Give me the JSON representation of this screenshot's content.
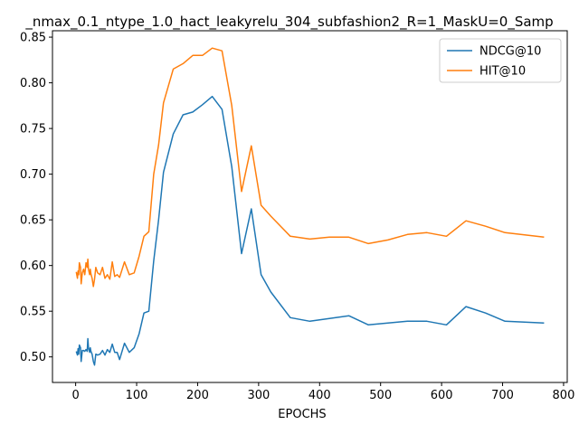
{
  "chart_data": {
    "type": "line",
    "title": "_nmax_0.1_ntype_1.0_hact_leakyrelu_304_subfashion2_R=1_MaskU=0_Samp",
    "xlabel": "EPOCHS",
    "ylabel": "",
    "xlim": [
      -38,
      806
    ],
    "ylim": [
      0.472,
      0.857
    ],
    "xticks": [
      0,
      100,
      200,
      300,
      400,
      500,
      600,
      700,
      800
    ],
    "yticks": [
      0.5,
      0.55,
      0.6,
      0.65,
      0.7,
      0.75,
      0.8,
      0.85
    ],
    "legend_position": "upper-right",
    "series": [
      {
        "name": "NDCG@10",
        "color": "#1f77b4",
        "x": [
          1,
          3,
          4,
          5,
          6,
          8,
          9,
          11,
          13,
          15,
          17,
          19,
          20,
          21,
          23,
          24,
          25,
          27,
          29,
          31,
          33,
          36,
          40,
          44,
          48,
          52,
          56,
          60,
          64,
          68,
          72,
          80,
          88,
          96,
          104,
          112,
          120,
          128,
          136,
          144,
          160,
          176,
          192,
          208,
          224,
          240,
          256,
          272,
          288,
          304,
          320,
          352,
          384,
          416,
          448,
          480,
          512,
          544,
          576,
          608,
          640,
          672,
          704,
          768
        ],
        "y": [
          0.506,
          0.502,
          0.509,
          0.503,
          0.513,
          0.51,
          0.495,
          0.507,
          0.507,
          0.506,
          0.508,
          0.506,
          0.52,
          0.51,
          0.505,
          0.51,
          0.506,
          0.503,
          0.495,
          0.491,
          0.503,
          0.502,
          0.503,
          0.507,
          0.502,
          0.508,
          0.505,
          0.514,
          0.505,
          0.505,
          0.497,
          0.515,
          0.505,
          0.51,
          0.525,
          0.548,
          0.55,
          0.605,
          0.65,
          0.702,
          0.744,
          0.765,
          0.768,
          0.776,
          0.785,
          0.771,
          0.708,
          0.613,
          0.662,
          0.59,
          0.571,
          0.543,
          0.539,
          0.542,
          0.545,
          0.535,
          0.537,
          0.539,
          0.539,
          0.535,
          0.555,
          0.548,
          0.539,
          0.537
        ]
      },
      {
        "name": "HIT@10",
        "color": "#ff7f0e",
        "x": [
          1,
          3,
          4,
          5,
          6,
          8,
          9,
          11,
          13,
          15,
          17,
          19,
          20,
          21,
          23,
          24,
          25,
          27,
          29,
          31,
          33,
          36,
          40,
          44,
          48,
          52,
          56,
          60,
          64,
          68,
          72,
          80,
          88,
          96,
          104,
          112,
          120,
          128,
          136,
          144,
          160,
          176,
          192,
          208,
          224,
          240,
          256,
          272,
          288,
          304,
          320,
          352,
          384,
          416,
          448,
          480,
          512,
          544,
          576,
          608,
          640,
          672,
          704,
          768
        ],
        "y": [
          0.593,
          0.586,
          0.594,
          0.59,
          0.603,
          0.598,
          0.58,
          0.592,
          0.596,
          0.59,
          0.603,
          0.598,
          0.607,
          0.596,
          0.59,
          0.596,
          0.591,
          0.586,
          0.577,
          0.585,
          0.598,
          0.592,
          0.59,
          0.598,
          0.586,
          0.59,
          0.585,
          0.604,
          0.588,
          0.59,
          0.587,
          0.604,
          0.59,
          0.592,
          0.61,
          0.632,
          0.637,
          0.7,
          0.732,
          0.778,
          0.815,
          0.821,
          0.83,
          0.83,
          0.838,
          0.835,
          0.775,
          0.681,
          0.731,
          0.666,
          0.654,
          0.632,
          0.629,
          0.631,
          0.631,
          0.624,
          0.628,
          0.634,
          0.636,
          0.632,
          0.649,
          0.643,
          0.636,
          0.631
        ]
      }
    ]
  }
}
